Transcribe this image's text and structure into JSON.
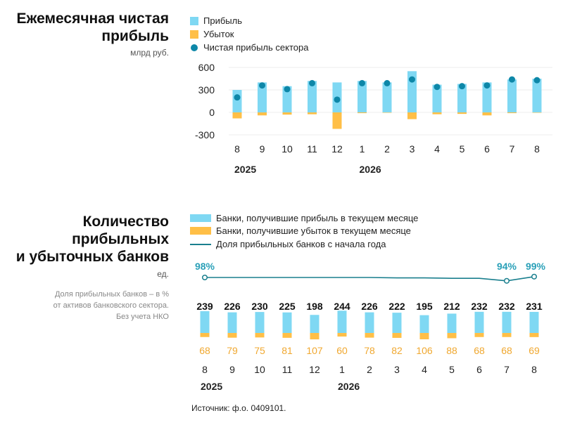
{
  "colors": {
    "profit": "#7fd8f3",
    "loss": "#ffbf47",
    "net": "#0d87a8",
    "share_line": "#1a7f8e",
    "share_label": "#2aa0b8",
    "loss_label": "#f0a830",
    "axis_text": "#222222",
    "grid": "#dddddd"
  },
  "top": {
    "title_line1": "Ежемесячная чистая",
    "title_line2": "прибыль",
    "unit": "млрд руб.",
    "legend": {
      "profit": "Прибыль",
      "loss": "Убыток",
      "net": "Чистая прибыль сектора"
    }
  },
  "bottom": {
    "title_line1": "Количество",
    "title_line2": "прибыльных",
    "title_line3": "и убыточных банков",
    "unit": "ед.",
    "note_line1": "Доля прибыльных банков – в %",
    "note_line2": "от активов банковского сектора.",
    "note_line3": "Без учета НКО",
    "legend": {
      "profit_banks": "Банки, получившие прибыль в текущем месяце",
      "loss_banks": "Банки, получившие убыток в текущем месяце",
      "share": "Доля прибыльных банков с начала года"
    }
  },
  "source": "Источник: ф.о. 0409101.",
  "chart_data": [
    {
      "type": "bar",
      "categories": [
        "8",
        "9",
        "10",
        "11",
        "12",
        "1",
        "2",
        "3",
        "4",
        "5",
        "6",
        "7",
        "8"
      ],
      "years": [
        {
          "label": "2025",
          "at_index": 0
        },
        {
          "label": "2026",
          "at_index": 5
        }
      ],
      "yticks": [
        600,
        300,
        0,
        -300
      ],
      "ylim": [
        -300,
        600
      ],
      "series": [
        {
          "name": "Прибыль",
          "kind": "bar",
          "values": [
            300,
            400,
            350,
            420,
            400,
            420,
            400,
            550,
            370,
            380,
            400,
            440,
            450
          ]
        },
        {
          "name": "Убыток",
          "kind": "bar",
          "values": [
            -80,
            -40,
            -30,
            -25,
            -220,
            -10,
            -5,
            -90,
            -25,
            -20,
            -40,
            -10,
            -5
          ]
        },
        {
          "name": "Чистая прибыль сектора",
          "kind": "scatter",
          "values": [
            200,
            360,
            310,
            390,
            170,
            390,
            390,
            440,
            340,
            350,
            360,
            440,
            430
          ]
        }
      ]
    },
    {
      "type": "bar",
      "categories": [
        "8",
        "9",
        "10",
        "11",
        "12",
        "1",
        "2",
        "3",
        "4",
        "5",
        "6",
        "7",
        "8"
      ],
      "years": [
        {
          "label": "2025",
          "at_index": 0
        },
        {
          "label": "2026",
          "at_index": 5
        }
      ],
      "series": [
        {
          "name": "Банки, получившие прибыль в текущем месяце",
          "values": [
            239,
            226,
            230,
            225,
            198,
            244,
            226,
            222,
            195,
            212,
            232,
            232,
            231
          ]
        },
        {
          "name": "Банки, получившие убыток в текущем месяце",
          "values": [
            68,
            79,
            75,
            81,
            107,
            60,
            78,
            82,
            106,
            88,
            68,
            68,
            69
          ]
        },
        {
          "name": "Доля прибыльных банков с начала года",
          "kind": "line",
          "values": [
            98,
            98,
            98,
            98,
            98,
            98,
            98,
            97.5,
            97.5,
            97,
            97,
            94,
            99
          ]
        }
      ],
      "share_labels": [
        {
          "index": 0,
          "text": "98%"
        },
        {
          "index": 11,
          "text": "94%"
        },
        {
          "index": 12,
          "text": "99%"
        }
      ]
    }
  ]
}
